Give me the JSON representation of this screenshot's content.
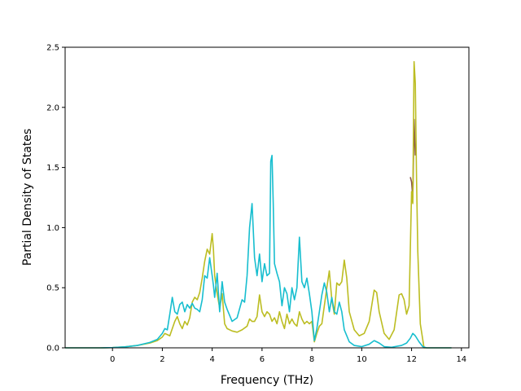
{
  "chart_data": {
    "type": "line",
    "title": "",
    "xlabel": "Frequency (THz)",
    "ylabel": "Partial Density of States",
    "xlim": [
      -1.9,
      14.3
    ],
    "ylim": [
      0,
      2.5
    ],
    "x_ticks": [
      0,
      2,
      4,
      6,
      8,
      10,
      12,
      14
    ],
    "y_ticks": [
      0.0,
      0.5,
      1.0,
      1.5,
      2.0,
      2.5
    ],
    "x_tick_labels": [
      "0",
      "2",
      "4",
      "6",
      "8",
      "10",
      "12",
      "14"
    ],
    "y_tick_labels": [
      "0.0",
      "0.5",
      "1.0",
      "1.5",
      "2.0",
      "2.5"
    ],
    "grid": false,
    "legend": "none",
    "series": [
      {
        "color": "#8c564b",
        "points": [
          [
            11.95,
            1.42
          ],
          [
            12.0,
            1.38
          ],
          [
            12.05,
            1.25
          ],
          [
            12.1,
            1.9
          ],
          [
            12.15,
            1.6
          ]
        ]
      },
      {
        "color": "#bcbd22",
        "points": [
          [
            -1.9,
            0.0
          ],
          [
            -0.5,
            0.0
          ],
          [
            0.0,
            0.002
          ],
          [
            0.5,
            0.008
          ],
          [
            1.0,
            0.02
          ],
          [
            1.5,
            0.04
          ],
          [
            1.8,
            0.06
          ],
          [
            2.0,
            0.09
          ],
          [
            2.1,
            0.12
          ],
          [
            2.2,
            0.11
          ],
          [
            2.3,
            0.1
          ],
          [
            2.4,
            0.16
          ],
          [
            2.5,
            0.22
          ],
          [
            2.6,
            0.26
          ],
          [
            2.7,
            0.2
          ],
          [
            2.8,
            0.16
          ],
          [
            2.9,
            0.22
          ],
          [
            3.0,
            0.19
          ],
          [
            3.1,
            0.25
          ],
          [
            3.2,
            0.38
          ],
          [
            3.3,
            0.42
          ],
          [
            3.4,
            0.4
          ],
          [
            3.5,
            0.46
          ],
          [
            3.6,
            0.58
          ],
          [
            3.7,
            0.72
          ],
          [
            3.8,
            0.82
          ],
          [
            3.9,
            0.78
          ],
          [
            4.0,
            0.95
          ],
          [
            4.05,
            0.82
          ],
          [
            4.1,
            0.6
          ],
          [
            4.2,
            0.45
          ],
          [
            4.3,
            0.33
          ],
          [
            4.4,
            0.45
          ],
          [
            4.5,
            0.2
          ],
          [
            4.6,
            0.16
          ],
          [
            4.8,
            0.14
          ],
          [
            5.0,
            0.13
          ],
          [
            5.2,
            0.15
          ],
          [
            5.4,
            0.18
          ],
          [
            5.5,
            0.24
          ],
          [
            5.6,
            0.22
          ],
          [
            5.7,
            0.22
          ],
          [
            5.8,
            0.26
          ],
          [
            5.9,
            0.44
          ],
          [
            6.0,
            0.3
          ],
          [
            6.1,
            0.26
          ],
          [
            6.2,
            0.3
          ],
          [
            6.3,
            0.28
          ],
          [
            6.4,
            0.22
          ],
          [
            6.5,
            0.25
          ],
          [
            6.6,
            0.2
          ],
          [
            6.7,
            0.3
          ],
          [
            6.8,
            0.22
          ],
          [
            6.9,
            0.16
          ],
          [
            7.0,
            0.28
          ],
          [
            7.1,
            0.2
          ],
          [
            7.2,
            0.24
          ],
          [
            7.3,
            0.2
          ],
          [
            7.4,
            0.18
          ],
          [
            7.5,
            0.3
          ],
          [
            7.6,
            0.24
          ],
          [
            7.7,
            0.2
          ],
          [
            7.8,
            0.22
          ],
          [
            7.9,
            0.2
          ],
          [
            8.0,
            0.22
          ],
          [
            8.1,
            0.05
          ],
          [
            8.2,
            0.12
          ],
          [
            8.3,
            0.18
          ],
          [
            8.4,
            0.2
          ],
          [
            8.5,
            0.35
          ],
          [
            8.6,
            0.5
          ],
          [
            8.7,
            0.64
          ],
          [
            8.8,
            0.4
          ],
          [
            8.9,
            0.28
          ],
          [
            9.0,
            0.54
          ],
          [
            9.1,
            0.52
          ],
          [
            9.2,
            0.55
          ],
          [
            9.3,
            0.73
          ],
          [
            9.4,
            0.58
          ],
          [
            9.5,
            0.3
          ],
          [
            9.7,
            0.15
          ],
          [
            9.9,
            0.1
          ],
          [
            10.1,
            0.12
          ],
          [
            10.3,
            0.22
          ],
          [
            10.5,
            0.48
          ],
          [
            10.6,
            0.46
          ],
          [
            10.7,
            0.3
          ],
          [
            10.9,
            0.12
          ],
          [
            11.1,
            0.07
          ],
          [
            11.3,
            0.15
          ],
          [
            11.5,
            0.44
          ],
          [
            11.6,
            0.45
          ],
          [
            11.7,
            0.4
          ],
          [
            11.8,
            0.28
          ],
          [
            11.9,
            0.35
          ],
          [
            12.0,
            1.3
          ],
          [
            12.05,
            1.2
          ],
          [
            12.1,
            2.38
          ],
          [
            12.15,
            2.2
          ],
          [
            12.2,
            1.4
          ],
          [
            12.25,
            0.8
          ],
          [
            12.35,
            0.2
          ],
          [
            12.5,
            0.0
          ],
          [
            13.6,
            0.0
          ]
        ]
      },
      {
        "color": "#17becf",
        "points": [
          [
            -1.9,
            0.0
          ],
          [
            -0.5,
            0.0
          ],
          [
            0.0,
            0.002
          ],
          [
            0.5,
            0.008
          ],
          [
            1.0,
            0.02
          ],
          [
            1.5,
            0.045
          ],
          [
            1.8,
            0.07
          ],
          [
            2.0,
            0.12
          ],
          [
            2.1,
            0.16
          ],
          [
            2.2,
            0.15
          ],
          [
            2.3,
            0.28
          ],
          [
            2.4,
            0.42
          ],
          [
            2.5,
            0.3
          ],
          [
            2.6,
            0.28
          ],
          [
            2.7,
            0.36
          ],
          [
            2.8,
            0.38
          ],
          [
            2.9,
            0.3
          ],
          [
            3.0,
            0.36
          ],
          [
            3.1,
            0.33
          ],
          [
            3.2,
            0.37
          ],
          [
            3.3,
            0.33
          ],
          [
            3.4,
            0.32
          ],
          [
            3.5,
            0.3
          ],
          [
            3.6,
            0.4
          ],
          [
            3.7,
            0.6
          ],
          [
            3.8,
            0.58
          ],
          [
            3.9,
            0.75
          ],
          [
            4.0,
            0.6
          ],
          [
            4.05,
            0.52
          ],
          [
            4.1,
            0.42
          ],
          [
            4.2,
            0.62
          ],
          [
            4.3,
            0.3
          ],
          [
            4.4,
            0.55
          ],
          [
            4.5,
            0.38
          ],
          [
            4.6,
            0.32
          ],
          [
            4.8,
            0.22
          ],
          [
            5.0,
            0.25
          ],
          [
            5.2,
            0.4
          ],
          [
            5.3,
            0.38
          ],
          [
            5.4,
            0.6
          ],
          [
            5.5,
            1.0
          ],
          [
            5.6,
            1.2
          ],
          [
            5.7,
            0.75
          ],
          [
            5.8,
            0.6
          ],
          [
            5.9,
            0.78
          ],
          [
            6.0,
            0.55
          ],
          [
            6.1,
            0.7
          ],
          [
            6.2,
            0.6
          ],
          [
            6.3,
            0.62
          ],
          [
            6.35,
            1.55
          ],
          [
            6.4,
            1.6
          ],
          [
            6.45,
            1.2
          ],
          [
            6.5,
            0.7
          ],
          [
            6.6,
            0.62
          ],
          [
            6.7,
            0.55
          ],
          [
            6.8,
            0.35
          ],
          [
            6.9,
            0.5
          ],
          [
            7.0,
            0.45
          ],
          [
            7.1,
            0.3
          ],
          [
            7.2,
            0.5
          ],
          [
            7.3,
            0.4
          ],
          [
            7.4,
            0.5
          ],
          [
            7.5,
            0.92
          ],
          [
            7.6,
            0.55
          ],
          [
            7.7,
            0.5
          ],
          [
            7.8,
            0.58
          ],
          [
            7.9,
            0.45
          ],
          [
            8.0,
            0.3
          ],
          [
            8.1,
            0.06
          ],
          [
            8.2,
            0.16
          ],
          [
            8.3,
            0.3
          ],
          [
            8.4,
            0.44
          ],
          [
            8.5,
            0.54
          ],
          [
            8.6,
            0.46
          ],
          [
            8.7,
            0.3
          ],
          [
            8.8,
            0.42
          ],
          [
            8.9,
            0.3
          ],
          [
            9.0,
            0.28
          ],
          [
            9.1,
            0.38
          ],
          [
            9.2,
            0.3
          ],
          [
            9.3,
            0.15
          ],
          [
            9.4,
            0.1
          ],
          [
            9.5,
            0.05
          ],
          [
            9.7,
            0.02
          ],
          [
            10.0,
            0.01
          ],
          [
            10.3,
            0.03
          ],
          [
            10.5,
            0.06
          ],
          [
            10.7,
            0.04
          ],
          [
            10.9,
            0.01
          ],
          [
            11.2,
            0.005
          ],
          [
            11.6,
            0.02
          ],
          [
            11.8,
            0.04
          ],
          [
            11.95,
            0.08
          ],
          [
            12.05,
            0.12
          ],
          [
            12.15,
            0.1
          ],
          [
            12.3,
            0.05
          ],
          [
            12.45,
            0.01
          ],
          [
            12.6,
            0.0
          ],
          [
            13.6,
            0.0
          ]
        ]
      }
    ]
  }
}
